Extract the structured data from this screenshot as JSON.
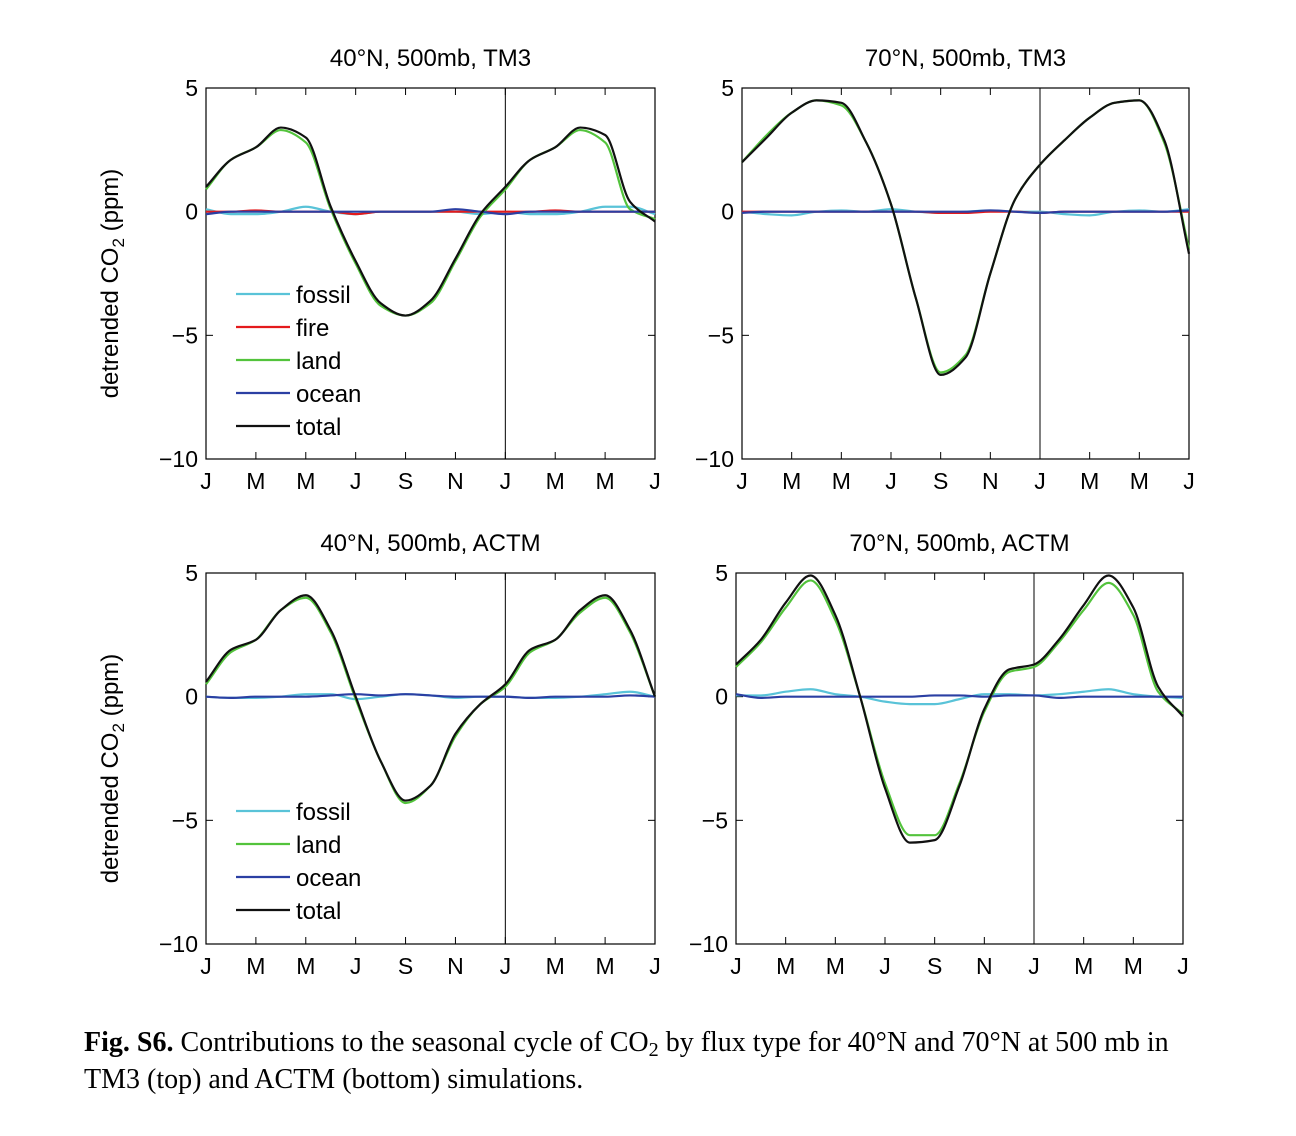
{
  "chart_data": [
    {
      "type": "line",
      "title": "40°N, 500mb, TM3",
      "ylabel": "detrended CO2 (ppm)",
      "xticks": [
        "J",
        "M",
        "M",
        "J",
        "S",
        "N",
        "J",
        "M",
        "M",
        "J"
      ],
      "yticks": [
        5,
        0,
        -5,
        -10
      ],
      "xlim": [
        0,
        18
      ],
      "ylim": [
        -10,
        5
      ],
      "x_unit": "month (0 = January, 12 = January of second year)",
      "vline_x": 12,
      "legend": [
        "fossil",
        "fire",
        "land",
        "ocean",
        "total"
      ],
      "x": [
        0,
        1,
        2,
        3,
        4,
        5,
        6,
        7,
        8,
        9,
        10,
        11,
        12,
        13,
        14,
        15,
        16,
        17,
        18
      ],
      "series": [
        {
          "name": "fossil",
          "color": "#59c3d8",
          "values": [
            0.1,
            -0.1,
            -0.1,
            0.0,
            0.2,
            0.0,
            -0.1,
            0.0,
            0.0,
            0.0,
            0.0,
            -0.1,
            0.0,
            -0.1,
            -0.1,
            0.0,
            0.2,
            0.2,
            -0.1
          ]
        },
        {
          "name": "fire",
          "color": "#e41a1c",
          "values": [
            0.0,
            0.0,
            0.05,
            0.0,
            0.0,
            0.0,
            -0.1,
            0.0,
            0.0,
            0.0,
            0.0,
            0.0,
            0.0,
            0.0,
            0.05,
            0.0,
            0.0,
            0.0,
            0.0
          ]
        },
        {
          "name": "land",
          "color": "#53c33c",
          "values": [
            0.9,
            2.1,
            2.6,
            3.3,
            2.8,
            0.1,
            -2.1,
            -3.8,
            -4.2,
            -3.7,
            -2.0,
            -0.2,
            0.9,
            2.1,
            2.6,
            3.3,
            2.8,
            0.1,
            -0.3
          ]
        },
        {
          "name": "ocean",
          "color": "#2b3fa3",
          "values": [
            -0.1,
            0.0,
            0.0,
            0.0,
            0.0,
            0.0,
            0.0,
            0.0,
            0.0,
            0.0,
            0.1,
            0.0,
            -0.1,
            0.0,
            0.0,
            0.0,
            0.0,
            0.0,
            0.0
          ]
        },
        {
          "name": "total",
          "color": "#111111",
          "values": [
            1.0,
            2.1,
            2.6,
            3.4,
            3.0,
            0.2,
            -2.0,
            -3.7,
            -4.2,
            -3.6,
            -1.9,
            -0.1,
            1.0,
            2.1,
            2.6,
            3.4,
            3.1,
            0.4,
            -0.4
          ]
        }
      ]
    },
    {
      "type": "line",
      "title": "70°N, 500mb, TM3",
      "ylabel": "",
      "xticks": [
        "J",
        "M",
        "M",
        "J",
        "S",
        "N",
        "J",
        "M",
        "M",
        "J"
      ],
      "yticks": [
        5,
        0,
        -5,
        -10
      ],
      "xlim": [
        0,
        18
      ],
      "ylim": [
        -10,
        5
      ],
      "vline_x": 12,
      "legend": [],
      "x": [
        0,
        1,
        2,
        3,
        4,
        5,
        6,
        7,
        8,
        9,
        10,
        11,
        12,
        13,
        14,
        15,
        16,
        17,
        18
      ],
      "series": [
        {
          "name": "fossil",
          "color": "#59c3d8",
          "values": [
            0.0,
            -0.1,
            -0.15,
            0.0,
            0.05,
            0.0,
            0.1,
            0.0,
            -0.05,
            0.0,
            0.05,
            0.0,
            0.0,
            -0.1,
            -0.15,
            0.0,
            0.05,
            0.0,
            0.1
          ]
        },
        {
          "name": "fire",
          "color": "#e41a1c",
          "values": [
            0.0,
            0.0,
            0.0,
            0.0,
            0.0,
            0.0,
            0.0,
            0.0,
            -0.05,
            -0.05,
            0.0,
            0.0,
            -0.05,
            0.0,
            0.0,
            0.0,
            0.0,
            0.0,
            0.0
          ]
        },
        {
          "name": "land",
          "color": "#53c33c",
          "values": [
            2.0,
            3.1,
            4.0,
            4.5,
            4.3,
            2.8,
            0.3,
            -3.5,
            -6.5,
            -5.8,
            -2.5,
            0.5,
            1.9,
            2.9,
            3.8,
            4.4,
            4.5,
            2.8,
            -1.5
          ]
        },
        {
          "name": "ocean",
          "color": "#2b3fa3",
          "values": [
            -0.05,
            0.0,
            0.0,
            0.0,
            0.0,
            0.0,
            0.0,
            0.0,
            0.0,
            0.0,
            0.05,
            0.0,
            -0.05,
            0.0,
            0.0,
            0.0,
            0.0,
            0.0,
            0.05
          ]
        },
        {
          "name": "total",
          "color": "#111111",
          "values": [
            2.0,
            3.0,
            4.0,
            4.5,
            4.4,
            2.8,
            0.3,
            -3.5,
            -6.6,
            -5.9,
            -2.5,
            0.5,
            1.9,
            2.9,
            3.8,
            4.4,
            4.5,
            2.9,
            -1.7
          ]
        }
      ]
    },
    {
      "type": "line",
      "title": "40°N, 500mb, ACTM",
      "ylabel": "detrended CO2 (ppm)",
      "xticks": [
        "J",
        "M",
        "M",
        "J",
        "S",
        "N",
        "J",
        "M",
        "M",
        "J"
      ],
      "yticks": [
        5,
        0,
        -5,
        -10
      ],
      "xlim": [
        0,
        18
      ],
      "ylim": [
        -10,
        5
      ],
      "vline_x": 12,
      "legend": [
        "fossil",
        "land",
        "ocean",
        "total"
      ],
      "x": [
        0,
        1,
        2,
        3,
        4,
        5,
        6,
        7,
        8,
        9,
        10,
        11,
        12,
        13,
        14,
        15,
        16,
        17,
        18
      ],
      "series": [
        {
          "name": "fossil",
          "color": "#59c3d8",
          "values": [
            0.0,
            -0.05,
            -0.05,
            0.0,
            0.1,
            0.1,
            -0.1,
            0.0,
            0.1,
            0.05,
            -0.05,
            0.0,
            0.0,
            -0.05,
            -0.05,
            0.0,
            0.1,
            0.2,
            0.0
          ]
        },
        {
          "name": "land",
          "color": "#53c33c",
          "values": [
            0.5,
            1.8,
            2.3,
            3.5,
            4.0,
            2.6,
            -0.1,
            -2.6,
            -4.3,
            -3.6,
            -1.6,
            -0.3,
            0.4,
            1.8,
            2.3,
            3.4,
            4.0,
            2.6,
            0.0
          ]
        },
        {
          "name": "ocean",
          "color": "#2b3fa3",
          "values": [
            0.0,
            -0.05,
            0.0,
            0.0,
            0.0,
            0.05,
            0.1,
            0.05,
            0.1,
            0.05,
            0.0,
            0.0,
            0.0,
            -0.05,
            0.0,
            0.0,
            0.0,
            0.05,
            0.0
          ]
        },
        {
          "name": "total",
          "color": "#111111",
          "values": [
            0.6,
            1.9,
            2.3,
            3.5,
            4.1,
            2.7,
            0.0,
            -2.6,
            -4.2,
            -3.6,
            -1.5,
            -0.3,
            0.5,
            1.9,
            2.3,
            3.5,
            4.1,
            2.7,
            0.0
          ]
        }
      ]
    },
    {
      "type": "line",
      "title": "70°N, 500mb, ACTM",
      "ylabel": "",
      "xticks": [
        "J",
        "M",
        "M",
        "J",
        "S",
        "N",
        "J",
        "M",
        "M",
        "J"
      ],
      "yticks": [
        5,
        0,
        -5,
        -10
      ],
      "xlim": [
        0,
        18
      ],
      "ylim": [
        -10,
        5
      ],
      "vline_x": 12,
      "legend": [],
      "x": [
        0,
        1,
        2,
        3,
        4,
        5,
        6,
        7,
        8,
        9,
        10,
        11,
        12,
        13,
        14,
        15,
        16,
        17,
        18
      ],
      "series": [
        {
          "name": "fossil",
          "color": "#59c3d8",
          "values": [
            0.05,
            0.05,
            0.2,
            0.3,
            0.1,
            0.0,
            -0.2,
            -0.3,
            -0.3,
            -0.1,
            0.1,
            0.1,
            0.05,
            0.1,
            0.2,
            0.3,
            0.1,
            0.0,
            -0.05
          ]
        },
        {
          "name": "land",
          "color": "#53c33c",
          "values": [
            1.2,
            2.2,
            3.6,
            4.7,
            3.1,
            0.0,
            -3.5,
            -5.6,
            -5.6,
            -3.5,
            -0.6,
            1.0,
            1.2,
            2.2,
            3.5,
            4.6,
            3.3,
            0.2,
            -0.7
          ]
        },
        {
          "name": "ocean",
          "color": "#2b3fa3",
          "values": [
            0.1,
            -0.05,
            0.0,
            0.0,
            0.0,
            0.0,
            0.0,
            0.0,
            0.05,
            0.05,
            0.0,
            0.05,
            0.05,
            -0.05,
            0.0,
            0.0,
            0.0,
            0.0,
            0.0
          ]
        },
        {
          "name": "total",
          "color": "#111111",
          "values": [
            1.3,
            2.3,
            3.8,
            4.9,
            3.3,
            0.0,
            -3.7,
            -5.9,
            -5.8,
            -3.6,
            -0.5,
            1.1,
            1.3,
            2.3,
            3.7,
            4.9,
            3.6,
            0.4,
            -0.8
          ]
        }
      ]
    }
  ],
  "caption": {
    "label": "Fig. S6.",
    "text_1": " Contributions to the seasonal cycle of CO",
    "sub": "2",
    "text_2": " by flux type for 40°N and 70°N at 500 mb in TM3 (top) and ACTM (bottom) simulations."
  }
}
